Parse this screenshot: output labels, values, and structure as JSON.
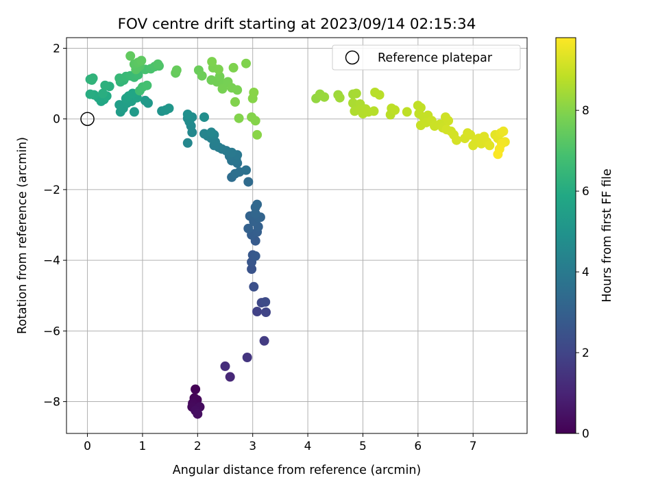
{
  "chart_data": {
    "type": "scatter",
    "title": "FOV centre drift starting at 2023/09/14 02:15:34",
    "xlabel": "Angular distance from reference (arcmin)",
    "ylabel": "Rotation from reference (arcmin)",
    "xlim": [
      -0.38,
      7.98
    ],
    "ylim": [
      -8.9,
      2.3
    ],
    "xticks": [
      0,
      1,
      2,
      3,
      4,
      5,
      6,
      7
    ],
    "yticks": [
      2,
      0,
      -2,
      -4,
      -6,
      -8
    ],
    "grid": true,
    "legend": {
      "placement": "top-right",
      "label": "Reference platepar"
    },
    "reference_point": {
      "x": 0,
      "y": 0
    },
    "colorbar": {
      "label": "Hours from first FF file",
      "colormap": "viridis",
      "range": [
        0,
        9.8
      ],
      "ticks": [
        0,
        2,
        4,
        6,
        8
      ]
    },
    "points": [
      {
        "x": 1.96,
        "y": -7.65,
        "h": 0.05
      },
      {
        "x": 1.94,
        "y": -7.9,
        "h": 0.1
      },
      {
        "x": 1.99,
        "y": -7.95,
        "h": 0.15
      },
      {
        "x": 1.91,
        "y": -8.05,
        "h": 0.2
      },
      {
        "x": 1.9,
        "y": -8.15,
        "h": 0.25
      },
      {
        "x": 2.04,
        "y": -8.15,
        "h": 0.3
      },
      {
        "x": 1.96,
        "y": -8.25,
        "h": 0.35
      },
      {
        "x": 2.0,
        "y": -8.35,
        "h": 0.4
      },
      {
        "x": 2.59,
        "y": -7.3,
        "h": 1.1
      },
      {
        "x": 2.5,
        "y": -7.0,
        "h": 1.3
      },
      {
        "x": 2.9,
        "y": -6.75,
        "h": 1.5
      },
      {
        "x": 3.21,
        "y": -6.28,
        "h": 1.7
      },
      {
        "x": 3.08,
        "y": -5.45,
        "h": 1.9
      },
      {
        "x": 3.24,
        "y": -5.47,
        "h": 2.0
      },
      {
        "x": 3.16,
        "y": -5.2,
        "h": 2.1
      },
      {
        "x": 3.23,
        "y": -5.18,
        "h": 2.2
      },
      {
        "x": 3.02,
        "y": -4.75,
        "h": 2.4
      },
      {
        "x": 2.98,
        "y": -4.25,
        "h": 2.5
      },
      {
        "x": 2.98,
        "y": -4.05,
        "h": 2.6
      },
      {
        "x": 3.0,
        "y": -3.85,
        "h": 2.7
      },
      {
        "x": 3.05,
        "y": -3.88,
        "h": 2.75
      },
      {
        "x": 3.05,
        "y": -3.45,
        "h": 2.8
      },
      {
        "x": 2.98,
        "y": -3.28,
        "h": 2.9
      },
      {
        "x": 3.08,
        "y": -3.2,
        "h": 2.95
      },
      {
        "x": 2.92,
        "y": -3.1,
        "h": 3.0
      },
      {
        "x": 3.1,
        "y": -3.05,
        "h": 3.0
      },
      {
        "x": 3.02,
        "y": -2.9,
        "h": 3.05
      },
      {
        "x": 3.1,
        "y": -2.8,
        "h": 3.1
      },
      {
        "x": 2.95,
        "y": -2.75,
        "h": 3.1
      },
      {
        "x": 3.14,
        "y": -2.78,
        "h": 3.15
      },
      {
        "x": 3.05,
        "y": -2.68,
        "h": 3.2
      },
      {
        "x": 3.05,
        "y": -2.5,
        "h": 3.25
      },
      {
        "x": 3.08,
        "y": -2.42,
        "h": 3.3
      },
      {
        "x": 2.92,
        "y": -1.78,
        "h": 3.4
      },
      {
        "x": 2.62,
        "y": -1.65,
        "h": 3.5
      },
      {
        "x": 2.68,
        "y": -1.55,
        "h": 3.55
      },
      {
        "x": 2.76,
        "y": -1.5,
        "h": 3.6
      },
      {
        "x": 2.88,
        "y": -1.45,
        "h": 3.65
      },
      {
        "x": 2.72,
        "y": -1.25,
        "h": 3.7
      },
      {
        "x": 2.62,
        "y": -1.18,
        "h": 3.75
      },
      {
        "x": 2.7,
        "y": -1.15,
        "h": 3.8
      },
      {
        "x": 2.58,
        "y": -1.05,
        "h": 3.85
      },
      {
        "x": 2.72,
        "y": -1.02,
        "h": 3.9
      },
      {
        "x": 2.62,
        "y": -0.95,
        "h": 3.95
      },
      {
        "x": 2.52,
        "y": -0.9,
        "h": 4.0
      },
      {
        "x": 2.44,
        "y": -0.85,
        "h": 4.05
      },
      {
        "x": 2.38,
        "y": -0.8,
        "h": 4.1
      },
      {
        "x": 2.3,
        "y": -0.75,
        "h": 4.15
      },
      {
        "x": 2.32,
        "y": -0.65,
        "h": 4.2
      },
      {
        "x": 2.25,
        "y": -0.55,
        "h": 4.25
      },
      {
        "x": 2.18,
        "y": -0.48,
        "h": 4.3
      },
      {
        "x": 2.3,
        "y": -0.45,
        "h": 4.35
      },
      {
        "x": 2.12,
        "y": -0.42,
        "h": 4.4
      },
      {
        "x": 2.25,
        "y": -0.38,
        "h": 4.45
      },
      {
        "x": 1.82,
        "y": -0.68,
        "h": 4.5
      },
      {
        "x": 1.9,
        "y": -0.38,
        "h": 4.55
      },
      {
        "x": 1.88,
        "y": -0.2,
        "h": 4.6
      },
      {
        "x": 1.85,
        "y": -0.08,
        "h": 4.65
      },
      {
        "x": 1.82,
        "y": 0.02,
        "h": 4.7
      },
      {
        "x": 1.9,
        "y": 0.05,
        "h": 4.75
      },
      {
        "x": 2.12,
        "y": 0.05,
        "h": 4.8
      },
      {
        "x": 1.82,
        "y": 0.13,
        "h": 4.85
      },
      {
        "x": 1.35,
        "y": 0.22,
        "h": 5.0
      },
      {
        "x": 1.42,
        "y": 0.25,
        "h": 5.05
      },
      {
        "x": 1.48,
        "y": 0.3,
        "h": 5.1
      },
      {
        "x": 1.1,
        "y": 0.45,
        "h": 5.2
      },
      {
        "x": 1.05,
        "y": 0.52,
        "h": 5.25
      },
      {
        "x": 0.85,
        "y": 0.2,
        "h": 5.3
      },
      {
        "x": 0.6,
        "y": 0.2,
        "h": 5.35
      },
      {
        "x": 0.65,
        "y": 0.3,
        "h": 5.4
      },
      {
        "x": 0.58,
        "y": 0.4,
        "h": 5.45
      },
      {
        "x": 0.72,
        "y": 0.45,
        "h": 5.5
      },
      {
        "x": 0.8,
        "y": 0.5,
        "h": 5.55
      },
      {
        "x": 0.7,
        "y": 0.58,
        "h": 5.6
      },
      {
        "x": 0.9,
        "y": 0.6,
        "h": 5.65
      },
      {
        "x": 0.75,
        "y": 0.65,
        "h": 5.7
      },
      {
        "x": 0.82,
        "y": 0.72,
        "h": 5.75
      },
      {
        "x": 0.25,
        "y": 0.5,
        "h": 5.8
      },
      {
        "x": 0.3,
        "y": 0.55,
        "h": 5.85
      },
      {
        "x": 0.2,
        "y": 0.6,
        "h": 5.9
      },
      {
        "x": 0.35,
        "y": 0.65,
        "h": 5.95
      },
      {
        "x": 0.12,
        "y": 0.68,
        "h": 6.0
      },
      {
        "x": 0.05,
        "y": 0.7,
        "h": 6.05
      },
      {
        "x": 0.28,
        "y": 0.72,
        "h": 6.1
      },
      {
        "x": 0.4,
        "y": 0.92,
        "h": 6.15
      },
      {
        "x": 0.32,
        "y": 0.95,
        "h": 6.2
      },
      {
        "x": 0.05,
        "y": 1.12,
        "h": 6.25
      },
      {
        "x": 0.1,
        "y": 1.15,
        "h": 6.3
      },
      {
        "x": 0.08,
        "y": 1.1,
        "h": 6.35
      },
      {
        "x": 0.6,
        "y": 1.05,
        "h": 6.4
      },
      {
        "x": 0.66,
        "y": 1.1,
        "h": 6.45
      },
      {
        "x": 0.58,
        "y": 1.15,
        "h": 6.5
      },
      {
        "x": 0.7,
        "y": 1.2,
        "h": 6.55
      },
      {
        "x": 0.78,
        "y": 1.22,
        "h": 6.6
      },
      {
        "x": 0.85,
        "y": 1.18,
        "h": 6.65
      },
      {
        "x": 0.92,
        "y": 1.25,
        "h": 6.7
      },
      {
        "x": 0.95,
        "y": 0.8,
        "h": 6.75
      },
      {
        "x": 1.0,
        "y": 0.9,
        "h": 6.8
      },
      {
        "x": 1.08,
        "y": 0.95,
        "h": 6.85
      },
      {
        "x": 1.05,
        "y": 1.4,
        "h": 6.9
      },
      {
        "x": 1.15,
        "y": 1.42,
        "h": 6.95
      },
      {
        "x": 1.22,
        "y": 1.48,
        "h": 7.0
      },
      {
        "x": 1.3,
        "y": 1.5,
        "h": 7.05
      },
      {
        "x": 1.28,
        "y": 1.55,
        "h": 7.1
      },
      {
        "x": 0.95,
        "y": 1.5,
        "h": 7.15
      },
      {
        "x": 0.88,
        "y": 1.4,
        "h": 7.2
      },
      {
        "x": 0.85,
        "y": 1.55,
        "h": 7.25
      },
      {
        "x": 0.92,
        "y": 1.6,
        "h": 7.3
      },
      {
        "x": 0.98,
        "y": 1.65,
        "h": 7.35
      },
      {
        "x": 0.78,
        "y": 1.78,
        "h": 7.4
      },
      {
        "x": 1.6,
        "y": 1.3,
        "h": 7.45
      },
      {
        "x": 1.62,
        "y": 1.38,
        "h": 7.5
      },
      {
        "x": 2.02,
        "y": 1.38,
        "h": 7.55
      },
      {
        "x": 2.08,
        "y": 1.22,
        "h": 7.6
      },
      {
        "x": 2.25,
        "y": 1.1,
        "h": 7.65
      },
      {
        "x": 2.35,
        "y": 1.05,
        "h": 7.7
      },
      {
        "x": 2.4,
        "y": 1.2,
        "h": 7.72
      },
      {
        "x": 2.48,
        "y": 1.0,
        "h": 7.74
      },
      {
        "x": 2.55,
        "y": 1.05,
        "h": 7.76
      },
      {
        "x": 2.45,
        "y": 0.85,
        "h": 7.78
      },
      {
        "x": 2.62,
        "y": 0.88,
        "h": 7.8
      },
      {
        "x": 2.72,
        "y": 0.82,
        "h": 7.82
      },
      {
        "x": 2.28,
        "y": 1.45,
        "h": 7.84
      },
      {
        "x": 2.38,
        "y": 1.4,
        "h": 7.86
      },
      {
        "x": 2.26,
        "y": 1.62,
        "h": 7.88
      },
      {
        "x": 2.65,
        "y": 1.45,
        "h": 7.9
      },
      {
        "x": 2.88,
        "y": 1.57,
        "h": 7.92
      },
      {
        "x": 2.68,
        "y": 0.48,
        "h": 7.94
      },
      {
        "x": 2.75,
        "y": 0.02,
        "h": 7.96
      },
      {
        "x": 2.98,
        "y": 0.05,
        "h": 7.98
      },
      {
        "x": 3.05,
        "y": -0.05,
        "h": 8.0
      },
      {
        "x": 3.0,
        "y": 0.58,
        "h": 8.02
      },
      {
        "x": 3.02,
        "y": 0.75,
        "h": 8.04
      },
      {
        "x": 3.08,
        "y": -0.45,
        "h": 8.06
      },
      {
        "x": 4.15,
        "y": 0.58,
        "h": 8.2
      },
      {
        "x": 4.22,
        "y": 0.7,
        "h": 8.25
      },
      {
        "x": 4.3,
        "y": 0.62,
        "h": 8.3
      },
      {
        "x": 4.55,
        "y": 0.68,
        "h": 8.35
      },
      {
        "x": 4.58,
        "y": 0.6,
        "h": 8.4
      },
      {
        "x": 4.82,
        "y": 0.7,
        "h": 8.45
      },
      {
        "x": 4.88,
        "y": 0.72,
        "h": 8.5
      },
      {
        "x": 4.82,
        "y": 0.45,
        "h": 8.55
      },
      {
        "x": 4.95,
        "y": 0.42,
        "h": 8.6
      },
      {
        "x": 4.85,
        "y": 0.22,
        "h": 8.62
      },
      {
        "x": 4.95,
        "y": 0.25,
        "h": 8.64
      },
      {
        "x": 5.05,
        "y": 0.28,
        "h": 8.66
      },
      {
        "x": 5.0,
        "y": 0.15,
        "h": 8.68
      },
      {
        "x": 5.1,
        "y": 0.2,
        "h": 8.7
      },
      {
        "x": 5.2,
        "y": 0.22,
        "h": 8.72
      },
      {
        "x": 5.22,
        "y": 0.75,
        "h": 8.74
      },
      {
        "x": 5.3,
        "y": 0.68,
        "h": 8.76
      },
      {
        "x": 5.5,
        "y": 0.12,
        "h": 8.78
      },
      {
        "x": 5.52,
        "y": 0.3,
        "h": 8.8
      },
      {
        "x": 5.58,
        "y": 0.25,
        "h": 8.82
      },
      {
        "x": 5.8,
        "y": 0.2,
        "h": 8.84
      },
      {
        "x": 6.0,
        "y": 0.38,
        "h": 8.86
      },
      {
        "x": 6.05,
        "y": 0.32,
        "h": 8.88
      },
      {
        "x": 6.02,
        "y": 0.15,
        "h": 8.9
      },
      {
        "x": 6.1,
        "y": 0.05,
        "h": 8.92
      },
      {
        "x": 6.18,
        "y": 0.1,
        "h": 8.94
      },
      {
        "x": 6.05,
        "y": -0.18,
        "h": 8.96
      },
      {
        "x": 6.15,
        "y": -0.1,
        "h": 8.98
      },
      {
        "x": 6.25,
        "y": -0.05,
        "h": 9.0
      },
      {
        "x": 6.3,
        "y": -0.2,
        "h": 9.02
      },
      {
        "x": 6.4,
        "y": -0.15,
        "h": 9.04
      },
      {
        "x": 6.45,
        "y": -0.25,
        "h": 9.06
      },
      {
        "x": 6.5,
        "y": 0.05,
        "h": 9.08
      },
      {
        "x": 6.55,
        "y": -0.05,
        "h": 9.1
      },
      {
        "x": 6.6,
        "y": -0.35,
        "h": 9.12
      },
      {
        "x": 6.52,
        "y": -0.3,
        "h": 9.14
      },
      {
        "x": 6.65,
        "y": -0.45,
        "h": 9.16
      },
      {
        "x": 6.7,
        "y": -0.6,
        "h": 9.18
      },
      {
        "x": 6.85,
        "y": -0.55,
        "h": 9.2
      },
      {
        "x": 6.9,
        "y": -0.4,
        "h": 9.22
      },
      {
        "x": 6.95,
        "y": -0.45,
        "h": 9.24
      },
      {
        "x": 7.0,
        "y": -0.75,
        "h": 9.26
      },
      {
        "x": 7.05,
        "y": -0.65,
        "h": 9.28
      },
      {
        "x": 7.1,
        "y": -0.55,
        "h": 9.3
      },
      {
        "x": 7.15,
        "y": -0.7,
        "h": 9.32
      },
      {
        "x": 7.2,
        "y": -0.5,
        "h": 9.34
      },
      {
        "x": 7.25,
        "y": -0.65,
        "h": 9.36
      },
      {
        "x": 7.3,
        "y": -0.75,
        "h": 9.38
      },
      {
        "x": 7.4,
        "y": -0.45,
        "h": 9.42
      },
      {
        "x": 7.45,
        "y": -0.55,
        "h": 9.46
      },
      {
        "x": 7.5,
        "y": -0.4,
        "h": 9.5
      },
      {
        "x": 7.55,
        "y": -0.35,
        "h": 9.55
      },
      {
        "x": 7.58,
        "y": -0.65,
        "h": 9.6
      },
      {
        "x": 7.52,
        "y": -0.7,
        "h": 9.65
      },
      {
        "x": 7.48,
        "y": -0.85,
        "h": 9.7
      },
      {
        "x": 7.45,
        "y": -1.0,
        "h": 9.75
      }
    ]
  }
}
